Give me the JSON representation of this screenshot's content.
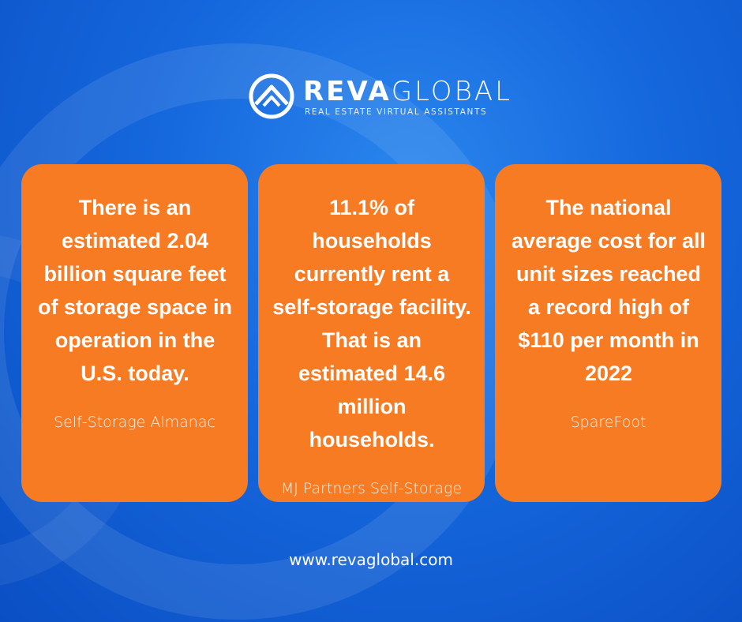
{
  "header": {
    "brand_bold": "REVA",
    "brand_light": "GLOBAL",
    "tagline": "REAL ESTATE VIRTUAL ASSISTANTS"
  },
  "cards": [
    {
      "text": "There is an estimated 2.04 billion square feet of storage space in operation in the U.S. today.",
      "source": "Self-Storage Almanac"
    },
    {
      "text": "11.1% of households currently rent a self-storage facility. That is an estimated 14.6 million households.",
      "source": "MJ Partners Self-Storage"
    },
    {
      "text": "The national average cost for all unit sizes reached a record high of $110 per month in 2022",
      "source": "SpareFoot"
    }
  ],
  "footer": {
    "url": "www.revaglobal.com"
  }
}
